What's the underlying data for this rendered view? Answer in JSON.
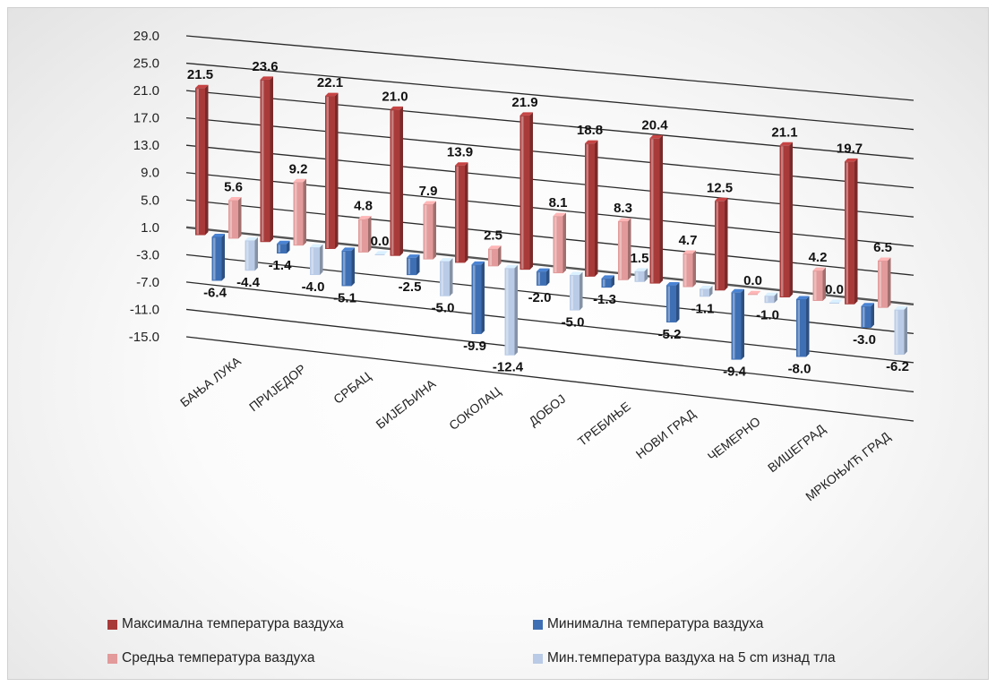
{
  "chart_data": {
    "type": "bar",
    "categories": [
      "БАЊА ЛУКА",
      "ПРИЈЕДОР",
      "СРБАЦ",
      "БИЈЕЉИНА",
      "СОКОЛАЦ",
      "ДОБОЈ",
      "ТРЕБИЊЕ",
      "НОВИ ГРАД",
      "ЧЕМЕРНО",
      "ВИШЕГРАД",
      "МРКОЊИЋ ГРАД"
    ],
    "series": [
      {
        "name": "Максимална температура ваздуха",
        "color": "#a93a3a",
        "values": [
          21.5,
          23.6,
          22.1,
          21.0,
          13.9,
          21.9,
          18.8,
          20.4,
          12.5,
          21.1,
          19.7
        ]
      },
      {
        "name": "Минимална температура ваздуха",
        "color": "#3e6fb4",
        "values": [
          -6.4,
          -1.4,
          -5.1,
          -2.5,
          -9.9,
          -2.0,
          -1.3,
          -5.2,
          -9.4,
          -8.0,
          -3.0
        ]
      },
      {
        "name": "Средња температура ваздуха",
        "color": "#e29a9a",
        "values": [
          5.6,
          9.2,
          4.8,
          7.9,
          2.5,
          8.1,
          8.3,
          4.7,
          0.0,
          4.2,
          6.5
        ]
      },
      {
        "name": "Мин.температура ваздуха на 5 cm изнад тла",
        "color": "#b9cbe6",
        "values": [
          -4.4,
          -4.0,
          0.0,
          -5.0,
          -12.4,
          -5.0,
          1.5,
          -1.1,
          -1.0,
          0.0,
          -6.2
        ]
      }
    ],
    "data_labels": [
      [
        "21.5",
        "23.6",
        "22.1",
        "21.0",
        "13.9",
        "21.9",
        "18.8",
        "20.4",
        "12.5",
        "21.1",
        "19.7"
      ],
      [
        "-6.4",
        "-1.4",
        "-5.1",
        "-2.5",
        "-9.9",
        "-2.0",
        "-1.3",
        "-5.2",
        "-9.4",
        "-8.0",
        "-3.0"
      ],
      [
        "5.6",
        "9.2",
        "4.8",
        "7.9",
        "2.5",
        "8.1",
        "8.3",
        "4.7",
        "0.0",
        "4.2",
        "6.5"
      ],
      [
        "-4.4",
        "-4.0",
        "0.0",
        "-5.0",
        "-12.4",
        "-5.0",
        "1.5",
        "-1.1",
        "-1.0",
        "0.0",
        "-6.2"
      ]
    ],
    "y_ticks": [
      "29.0",
      "25.0",
      "21.0",
      "17.0",
      "13.0",
      "9.0",
      "5.0",
      "1.0",
      "-3.0",
      "-7.0",
      "-11.0",
      "-15.0"
    ],
    "ylim": [
      -15,
      29
    ],
    "grid": true,
    "legend_position": "bottom",
    "title": "",
    "xlabel": "",
    "ylabel": ""
  }
}
